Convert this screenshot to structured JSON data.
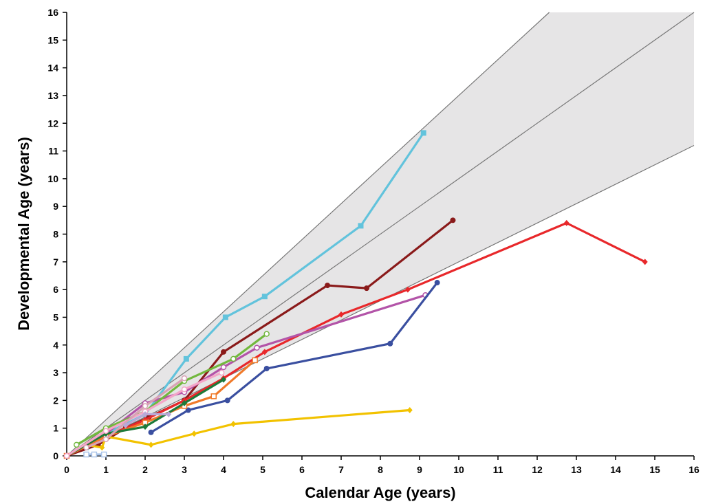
{
  "chart_data": {
    "type": "line",
    "title": "",
    "xlabel": "Calendar Age (years)",
    "ylabel": "Developmental Age (years)",
    "xlim": [
      0,
      16
    ],
    "ylim": [
      0,
      16
    ],
    "xticks": [
      "0",
      "1",
      "2",
      "3",
      "4",
      "5",
      "6",
      "7",
      "8",
      "9",
      "10",
      "11",
      "12",
      "13",
      "14",
      "15",
      "16"
    ],
    "yticks": [
      "0",
      "1",
      "2",
      "3",
      "4",
      "5",
      "6",
      "7",
      "8",
      "9",
      "10",
      "11",
      "12",
      "13",
      "14",
      "15",
      "16"
    ],
    "grid": false,
    "legend": "none",
    "reference_band": {
      "fill": "#e6e5e6",
      "line_color": "#777777",
      "lines": [
        {
          "slope": 1.3
        },
        {
          "slope": 1.0
        },
        {
          "slope": 0.7
        }
      ]
    },
    "series": [
      {
        "color": "#62c3dc",
        "marker": "square",
        "points": [
          [
            0,
            0
          ],
          [
            0.5,
            0.3
          ],
          [
            1,
            0.8
          ],
          [
            2,
            1.5
          ],
          [
            3.05,
            3.5
          ],
          [
            4.05,
            5.0
          ],
          [
            5.05,
            5.75
          ],
          [
            7.5,
            8.3
          ],
          [
            9.1,
            11.65
          ]
        ]
      },
      {
        "color": "#8a1a1a",
        "marker": "circle",
        "points": [
          [
            0,
            0
          ],
          [
            0.8,
            0.4
          ],
          [
            1.5,
            1.0
          ],
          [
            2.1,
            1.4
          ],
          [
            3,
            2.0
          ],
          [
            4,
            3.75
          ],
          [
            6.65,
            6.15
          ],
          [
            7.65,
            6.05
          ],
          [
            9.85,
            8.5
          ]
        ]
      },
      {
        "color": "#e8282b",
        "marker": "diamond",
        "points": [
          [
            0,
            0
          ],
          [
            1,
            0.7
          ],
          [
            2,
            1.3
          ],
          [
            3,
            2.0
          ],
          [
            4,
            2.8
          ],
          [
            5.05,
            3.75
          ],
          [
            7,
            5.1
          ],
          [
            8.7,
            6.0
          ],
          [
            12.75,
            8.4
          ],
          [
            14.75,
            7.0
          ]
        ]
      },
      {
        "color": "#b354a8",
        "marker": "circle-open",
        "points": [
          [
            0,
            0
          ],
          [
            1,
            0.8
          ],
          [
            2,
            1.9
          ],
          [
            3,
            2.3
          ],
          [
            4,
            3.2
          ],
          [
            4.85,
            3.9
          ],
          [
            9.15,
            5.8
          ]
        ]
      },
      {
        "color": "#3a4fa0",
        "marker": "circle",
        "points": [
          [
            2.15,
            0.85
          ],
          [
            3.1,
            1.65
          ],
          [
            4.1,
            2.0
          ],
          [
            5.1,
            3.15
          ],
          [
            8.25,
            4.05
          ],
          [
            9.45,
            6.25
          ]
        ]
      },
      {
        "color": "#f2c200",
        "marker": "diamond",
        "points": [
          [
            0,
            0
          ],
          [
            0.5,
            0.4
          ],
          [
            0.9,
            0.3
          ],
          [
            1,
            0.7
          ],
          [
            2.15,
            0.4
          ],
          [
            3.25,
            0.8
          ],
          [
            4.25,
            1.15
          ],
          [
            8.75,
            1.65
          ]
        ]
      },
      {
        "color": "#72b83e",
        "marker": "circle-open",
        "points": [
          [
            0.25,
            0.4
          ],
          [
            1,
            1.0
          ],
          [
            2,
            1.6
          ],
          [
            3,
            2.7
          ],
          [
            4.25,
            3.5
          ],
          [
            5.1,
            4.4
          ]
        ]
      },
      {
        "color": "#f07a2a",
        "marker": "square-open",
        "points": [
          [
            0,
            0
          ],
          [
            1,
            0.7
          ],
          [
            2,
            1.2
          ],
          [
            3,
            1.8
          ],
          [
            3.75,
            2.15
          ],
          [
            4.8,
            3.45
          ]
        ]
      },
      {
        "color": "#1e7a3a",
        "marker": "diamond",
        "points": [
          [
            0,
            0
          ],
          [
            1,
            0.8
          ],
          [
            2,
            1.05
          ],
          [
            3,
            1.9
          ],
          [
            4,
            2.75
          ]
        ]
      },
      {
        "color": "#f4a6c8",
        "marker": "circle-open",
        "points": [
          [
            0,
            0
          ],
          [
            1,
            0.9
          ],
          [
            2,
            1.6
          ],
          [
            3,
            2.4
          ],
          [
            3.95,
            3.0
          ]
        ]
      },
      {
        "color": "#d9a2b5",
        "marker": "circle-open",
        "points": [
          [
            0.5,
            0.3
          ],
          [
            1,
            0.6
          ],
          [
            2,
            1.8
          ],
          [
            3,
            2.8
          ]
        ]
      },
      {
        "color": "#b9a9d8",
        "marker": "diamond",
        "points": [
          [
            1.5,
            1.1
          ],
          [
            2,
            1.5
          ],
          [
            2.6,
            1.5
          ]
        ]
      },
      {
        "color": "#a9c3e8",
        "marker": "square-open",
        "points": [
          [
            0.5,
            0.05
          ],
          [
            0.7,
            0.05
          ],
          [
            0.95,
            0.05
          ]
        ]
      }
    ]
  }
}
